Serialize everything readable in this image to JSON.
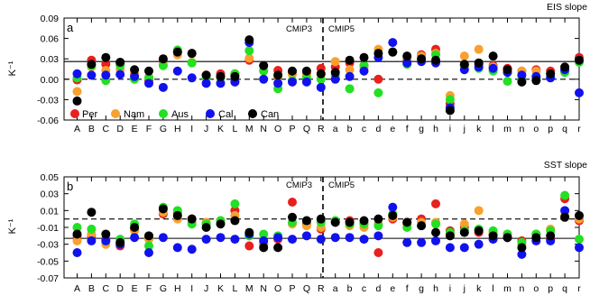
{
  "chart_data": [
    {
      "type": "scatter",
      "panel_label": "a",
      "title": "EIS slope",
      "ylabel": "K⁻¹",
      "ylim": [
        -0.06,
        0.09
      ],
      "yticks": [
        -0.06,
        -0.03,
        0.0,
        0.03,
        0.06,
        0.09
      ],
      "ytick_labels": [
        "-0.06",
        "-0.03",
        "0.00",
        "0.03",
        "0.06",
        "0.09"
      ],
      "reference_lines": [
        0.026,
        0.0
      ],
      "categories": [
        "A",
        "B",
        "C",
        "D",
        "E",
        "F",
        "G",
        "H",
        "I",
        "J",
        "K",
        "L",
        "M",
        "N",
        "O",
        "P",
        "Q",
        "R",
        "a",
        "b",
        "c",
        "d",
        "e",
        "f",
        "g",
        "h",
        "i",
        "j",
        "k",
        "l",
        "m",
        "n",
        "o",
        "p",
        "q",
        "r"
      ],
      "group_labels": [
        "CMIP3",
        "CMIP5"
      ],
      "group_split_after": 17,
      "legend_position": "bottom-left",
      "series": [
        {
          "name": "Per",
          "color": "#e8201e",
          "values": [
            -0.001,
            0.028,
            0.022,
            0.023,
            0.008,
            -0.002,
            0.027,
            0.04,
            0.038,
            0.006,
            0.008,
            0.008,
            0.028,
            0.02,
            0.013,
            0.009,
            0.008,
            0.016,
            0.018,
            0.024,
            0.02,
            0.0,
            0.04,
            0.028,
            0.036,
            0.044,
            -0.036,
            0.02,
            0.022,
            0.02,
            0.016,
            0.012,
            0.014,
            0.012,
            0.014,
            0.032
          ]
        },
        {
          "name": "Nam",
          "color": "#f9a02e",
          "values": [
            -0.018,
            0.018,
            0.013,
            0.014,
            0.008,
            0.003,
            0.021,
            0.036,
            0.025,
            0.002,
            0.002,
            -0.004,
            0.031,
            0.013,
            0.004,
            0.007,
            0.006,
            0.007,
            0.026,
            0.014,
            0.017,
            0.044,
            0.04,
            0.03,
            0.034,
            0.038,
            -0.024,
            0.034,
            0.044,
            0.018,
            0.01,
            0.012,
            0.012,
            0.008,
            0.012,
            0.026
          ]
        },
        {
          "name": "Aus",
          "color": "#22e022",
          "values": [
            0.002,
            0.02,
            -0.002,
            0.02,
            0.0,
            0.002,
            0.02,
            0.043,
            0.024,
            0.002,
            0.002,
            0.008,
            0.042,
            0.012,
            -0.014,
            -0.002,
            0.002,
            0.0,
            0.006,
            -0.014,
            0.02,
            -0.02,
            0.04,
            0.022,
            0.03,
            0.036,
            -0.03,
            0.02,
            0.016,
            0.012,
            -0.003,
            0.0,
            0.002,
            0.004,
            0.01,
            0.025
          ]
        },
        {
          "name": "Cal",
          "color": "#1111ee",
          "values": [
            0.008,
            0.006,
            0.006,
            0.007,
            0.004,
            -0.006,
            -0.012,
            0.012,
            0.002,
            -0.006,
            -0.006,
            -0.004,
            0.054,
            0.0,
            -0.006,
            -0.004,
            -0.004,
            -0.012,
            0.0,
            0.004,
            0.012,
            0.032,
            0.054,
            0.024,
            0.026,
            0.024,
            -0.042,
            0.014,
            0.018,
            0.016,
            0.01,
            0.006,
            0.004,
            0.002,
            0.014,
            -0.02
          ]
        },
        {
          "name": "Can",
          "color": "#000000",
          "values": [
            -0.032,
            0.022,
            0.032,
            0.025,
            0.014,
            0.012,
            0.03,
            0.04,
            0.038,
            0.006,
            0.004,
            0.004,
            0.058,
            0.02,
            0.006,
            0.012,
            0.012,
            0.008,
            0.01,
            0.028,
            0.032,
            0.038,
            0.04,
            0.034,
            0.03,
            0.028,
            -0.046,
            0.022,
            0.024,
            0.034,
            0.014,
            -0.004,
            -0.002,
            0.008,
            0.018,
            0.028
          ]
        }
      ]
    },
    {
      "type": "scatter",
      "panel_label": "b",
      "title": "SST slope",
      "ylabel": "K⁻¹",
      "ylim": [
        -0.07,
        0.05
      ],
      "yticks": [
        -0.07,
        -0.05,
        -0.03,
        -0.01,
        0.01,
        0.03,
        0.05
      ],
      "ytick_labels": [
        "-0.07",
        "-0.05",
        "-0.03",
        "-0.01",
        "0.01",
        "0.03",
        "0.05"
      ],
      "reference_lines": [
        0.0,
        -0.023
      ],
      "categories": [
        "A",
        "B",
        "C",
        "D",
        "E",
        "F",
        "G",
        "H",
        "I",
        "J",
        "K",
        "L",
        "M",
        "N",
        "O",
        "P",
        "Q",
        "R",
        "a",
        "b",
        "c",
        "d",
        "e",
        "f",
        "g",
        "h",
        "i",
        "j",
        "k",
        "l",
        "m",
        "n",
        "o",
        "p",
        "q",
        "r"
      ],
      "group_labels": [
        "CMIP3",
        "CMIP5"
      ],
      "group_split_after": 17,
      "series": [
        {
          "name": "Per",
          "color": "#e8201e",
          "values": [
            -0.02,
            -0.02,
            -0.024,
            -0.032,
            -0.012,
            -0.022,
            0.006,
            0.008,
            0.0,
            -0.006,
            -0.002,
            0.01,
            -0.032,
            -0.03,
            -0.024,
            0.02,
            -0.006,
            -0.012,
            -0.004,
            -0.002,
            -0.006,
            -0.04,
            0.0,
            -0.004,
            0.0,
            0.018,
            -0.014,
            -0.01,
            -0.016,
            -0.018,
            -0.022,
            -0.026,
            -0.018,
            -0.024,
            0.024,
            -0.002
          ]
        },
        {
          "name": "Nam",
          "color": "#f9a02e",
          "values": [
            -0.026,
            -0.018,
            -0.03,
            -0.03,
            -0.014,
            -0.024,
            0.008,
            0.0,
            -0.004,
            -0.004,
            -0.002,
            0.004,
            -0.02,
            -0.028,
            -0.022,
            -0.006,
            -0.008,
            -0.01,
            -0.002,
            -0.008,
            -0.01,
            -0.006,
            0.002,
            -0.006,
            -0.004,
            -0.004,
            -0.018,
            -0.006,
            0.01,
            -0.016,
            -0.018,
            -0.03,
            -0.018,
            -0.012,
            0.004,
            0.0
          ]
        },
        {
          "name": "Aus",
          "color": "#22e022",
          "values": [
            -0.01,
            -0.012,
            -0.026,
            -0.024,
            -0.006,
            -0.032,
            0.014,
            0.01,
            -0.006,
            -0.006,
            -0.002,
            0.018,
            -0.02,
            -0.018,
            -0.02,
            -0.004,
            -0.002,
            -0.004,
            -0.002,
            -0.006,
            -0.006,
            -0.008,
            0.006,
            -0.01,
            -0.008,
            -0.006,
            -0.016,
            -0.014,
            -0.012,
            -0.014,
            -0.018,
            -0.028,
            -0.018,
            -0.014,
            0.028,
            -0.024
          ]
        },
        {
          "name": "Cal",
          "color": "#1111ee",
          "values": [
            -0.04,
            -0.026,
            -0.026,
            -0.03,
            -0.022,
            -0.04,
            -0.022,
            -0.034,
            -0.036,
            -0.024,
            -0.022,
            -0.024,
            -0.018,
            -0.026,
            -0.022,
            -0.024,
            -0.02,
            -0.024,
            -0.022,
            -0.022,
            -0.024,
            -0.02,
            0.014,
            -0.028,
            -0.028,
            -0.026,
            -0.034,
            -0.034,
            -0.03,
            -0.024,
            -0.022,
            -0.042,
            -0.026,
            -0.026,
            0.01,
            -0.034
          ]
        },
        {
          "name": "Can",
          "color": "#000000",
          "values": [
            -0.018,
            0.008,
            -0.018,
            -0.028,
            -0.01,
            -0.02,
            0.012,
            0.004,
            0.0,
            -0.01,
            -0.006,
            -0.002,
            -0.016,
            -0.034,
            -0.034,
            0.002,
            -0.002,
            0.0,
            -0.004,
            -0.004,
            -0.002,
            0.0,
            0.004,
            -0.004,
            -0.008,
            -0.016,
            -0.02,
            -0.016,
            -0.014,
            -0.02,
            -0.022,
            -0.034,
            -0.022,
            -0.02,
            0.002,
            0.004
          ]
        }
      ]
    }
  ]
}
